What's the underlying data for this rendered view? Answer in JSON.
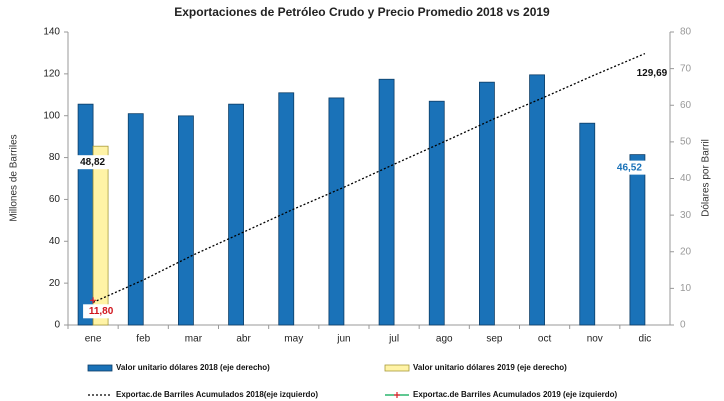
{
  "chart_data": {
    "type": "combo",
    "title": "Exportaciones de Petróleo Crudo y Precio Promedio 2018 vs 2019",
    "y_label": "Millones de Barriles",
    "y2_label": "Dólares por Barril",
    "categories": [
      "ene",
      "feb",
      "mar",
      "abr",
      "may",
      "jun",
      "jul",
      "ago",
      "sep",
      "oct",
      "nov",
      "dic"
    ],
    "ylim": [
      0,
      140
    ],
    "yticks": [
      0,
      20,
      40,
      60,
      80,
      100,
      120,
      140
    ],
    "y2lim": [
      0,
      80
    ],
    "y2ticks": [
      0,
      10,
      20,
      30,
      40,
      50,
      60,
      70,
      80
    ],
    "grid": false,
    "series": [
      {
        "name": "Valor unitario dólares 2018 (eje derecho)",
        "type": "bar",
        "axis": "y2",
        "color": "#1a72b8",
        "values": [
          60.3,
          57.7,
          57.1,
          60.3,
          63.4,
          62.0,
          67.1,
          61.1,
          66.3,
          68.3,
          55.1,
          46.52
        ],
        "value_labels": [
          null,
          null,
          null,
          null,
          null,
          null,
          null,
          null,
          null,
          null,
          null,
          "46,52"
        ]
      },
      {
        "name": "Valor unitario dólares 2019 (eje derecho)",
        "type": "bar",
        "axis": "y2",
        "color": "#fff3a6",
        "values": [
          48.82,
          null,
          null,
          null,
          null,
          null,
          null,
          null,
          null,
          null,
          null,
          null
        ],
        "value_labels": [
          "48,82",
          null,
          null,
          null,
          null,
          null,
          null,
          null,
          null,
          null,
          null,
          null
        ]
      },
      {
        "name": "Exportac.de Barriles Acumulados 2018(eje izquierdo)",
        "type": "line",
        "axis": "y",
        "color": "#000000",
        "values": [
          10.8,
          21.5,
          33.5,
          44.4,
          55.4,
          65.8,
          76.8,
          87.6,
          98.6,
          108.9,
          119.5,
          129.69
        ],
        "value_labels": [
          null,
          null,
          null,
          null,
          null,
          null,
          null,
          null,
          null,
          null,
          null,
          "129,69"
        ]
      },
      {
        "name": "Exportac.de Barriles Acumulados 2019 (eje izquierdo)",
        "type": "line",
        "axis": "y",
        "color": "#00a651",
        "values": [
          11.8,
          null,
          null,
          null,
          null,
          null,
          null,
          null,
          null,
          null,
          null,
          null
        ],
        "value_labels": [
          "11,80",
          null,
          null,
          null,
          null,
          null,
          null,
          null,
          null,
          null,
          null,
          null
        ]
      }
    ]
  }
}
